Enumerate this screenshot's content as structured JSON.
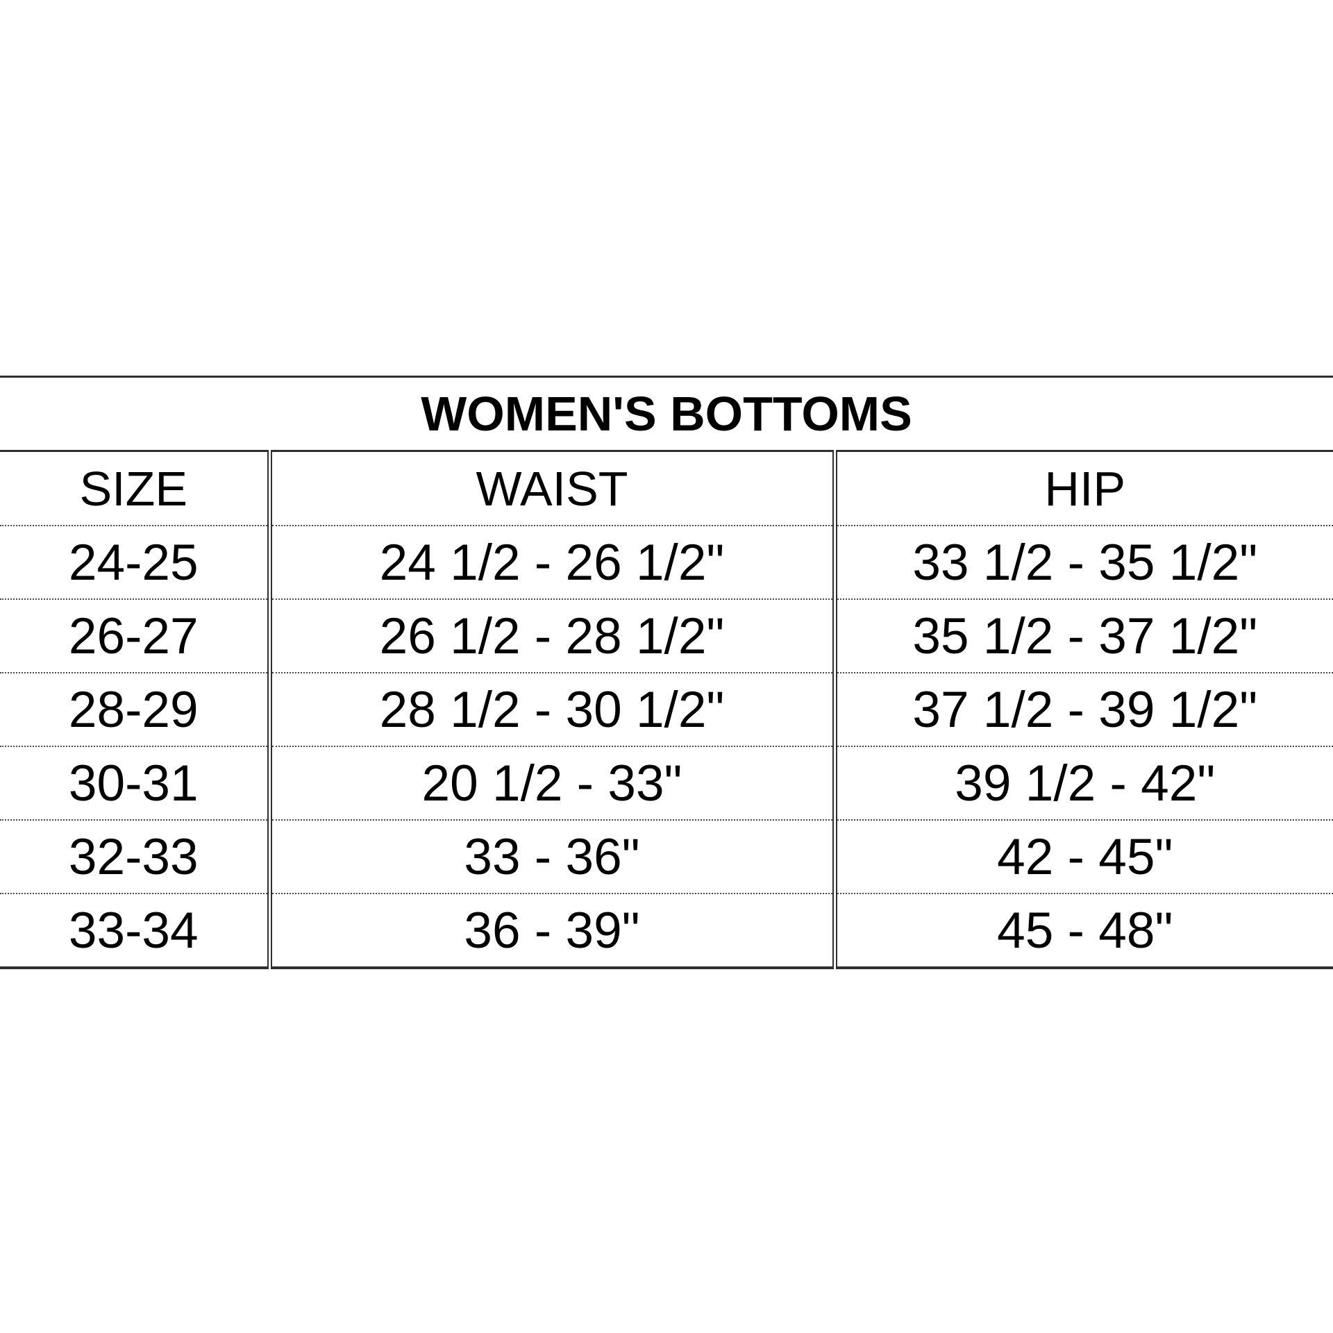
{
  "chart_data": {
    "type": "table",
    "title": "WOMEN'S BOTTOMS",
    "columns": [
      "SIZE",
      "WAIST",
      "HIP"
    ],
    "rows": [
      [
        "24-25",
        "24 1/2 - 26 1/2\"",
        "33 1/2 - 35 1/2\""
      ],
      [
        "26-27",
        "26 1/2 - 28 1/2\"",
        "35 1/2 - 37 1/2\""
      ],
      [
        "28-29",
        "28 1/2 - 30 1/2\"",
        "37 1/2 - 39 1/2\""
      ],
      [
        "30-31",
        "20 1/2 - 33\"",
        "39 1/2 - 42\""
      ],
      [
        "32-33",
        "33 - 36\"",
        "42 - 45\""
      ],
      [
        "33-34",
        "36 - 39\"",
        "45 - 48\""
      ]
    ],
    "layout_hints": {
      "title_row_merged": true,
      "row_separators": "dotted",
      "column_separators": "double-line",
      "outer_vertical_borders": false
    }
  },
  "colors": {
    "background": "#ffffff",
    "text": "#000000",
    "solid_lines": "#2e2e2e",
    "dotted_lines": "#4a4a4a"
  }
}
